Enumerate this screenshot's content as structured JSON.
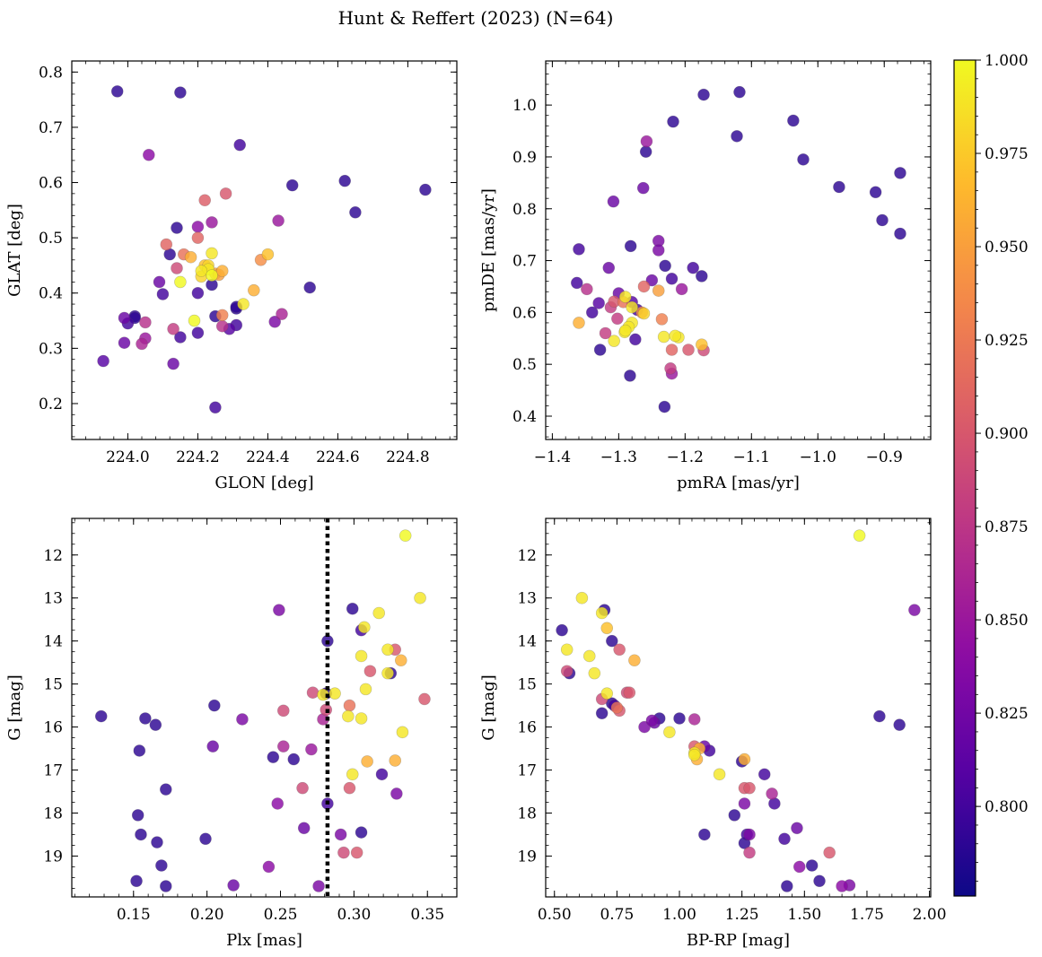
{
  "figure": {
    "title": "Hunt & Reffert (2023) (N=64)",
    "point_cmap": "plasma"
  },
  "colorbar": {
    "range": [
      0.776,
      1.0
    ],
    "ticks": [
      "0.800",
      "0.825",
      "0.850",
      "0.875",
      "0.900",
      "0.925",
      "0.950",
      "0.975",
      "1.000"
    ],
    "tick_values": [
      0.8,
      0.825,
      0.85,
      0.875,
      0.9,
      0.925,
      0.95,
      0.975,
      1.0
    ]
  },
  "chart_data": [
    {
      "type": "scatter",
      "panel": "glon-glat",
      "xlabel": "GLON [deg]",
      "ylabel": "GLAT [deg]",
      "xlim": [
        223.84,
        224.94
      ],
      "ylim": [
        0.135,
        0.82
      ],
      "invert_y": false,
      "xticks": [
        224.0,
        224.2,
        224.4,
        224.6,
        224.8
      ],
      "xtick_labels": [
        "224.0",
        "224.2",
        "224.4",
        "224.6",
        "224.8"
      ],
      "yticks": [
        0.2,
        0.3,
        0.4,
        0.5,
        0.6,
        0.7,
        0.8
      ],
      "ytick_labels": [
        "0.2",
        "0.3",
        "0.4",
        "0.5",
        "0.6",
        "0.7",
        "0.8"
      ],
      "x": [
        223.97,
        224.15,
        224.32,
        224.06,
        224.47,
        224.62,
        224.65,
        224.85,
        224.22,
        224.28,
        224.14,
        224.24,
        224.2,
        224.43,
        224.11,
        224.2,
        224.12,
        224.16,
        224.18,
        224.24,
        224.22,
        224.4,
        224.25,
        224.24,
        224.14,
        224.23,
        224.24,
        224.21,
        224.26,
        224.15,
        224.09,
        224.1,
        224.2,
        224.36,
        224.38,
        224.33,
        224.31,
        224.52,
        223.99,
        224.02,
        224.0,
        224.02,
        224.27,
        224.19,
        224.25,
        224.31,
        224.44,
        224.42,
        224.27,
        224.29,
        224.2,
        224.13,
        224.05,
        223.99,
        224.04,
        224.15,
        224.05,
        223.93,
        224.13,
        224.25,
        224.21,
        224.31,
        224.27,
        224.23
      ],
      "y": [
        0.765,
        0.763,
        0.668,
        0.65,
        0.595,
        0.603,
        0.546,
        0.587,
        0.568,
        0.58,
        0.518,
        0.528,
        0.52,
        0.531,
        0.488,
        0.5,
        0.47,
        0.47,
        0.465,
        0.472,
        0.45,
        0.47,
        0.435,
        0.432,
        0.445,
        0.443,
        0.415,
        0.43,
        0.433,
        0.42,
        0.42,
        0.398,
        0.4,
        0.405,
        0.46,
        0.38,
        0.372,
        0.41,
        0.355,
        0.358,
        0.345,
        0.355,
        0.36,
        0.35,
        0.358,
        0.342,
        0.362,
        0.348,
        0.34,
        0.335,
        0.328,
        0.335,
        0.318,
        0.31,
        0.308,
        0.32,
        0.347,
        0.277,
        0.272,
        0.193,
        0.44,
        0.375,
        0.44,
        0.45
      ],
      "c": [
        0.79,
        0.79,
        0.8,
        0.84,
        0.79,
        0.79,
        0.79,
        0.79,
        0.905,
        0.9,
        0.79,
        0.85,
        0.84,
        0.85,
        0.91,
        0.91,
        0.79,
        0.92,
        0.96,
        0.99,
        0.97,
        0.97,
        0.95,
        1.0,
        0.89,
        0.99,
        0.79,
        0.98,
        0.95,
        1.0,
        0.82,
        0.8,
        0.8,
        0.96,
        0.94,
        0.99,
        0.79,
        0.79,
        0.82,
        0.79,
        0.8,
        0.79,
        0.93,
        1.0,
        0.79,
        0.8,
        0.86,
        0.83,
        0.87,
        0.81,
        0.8,
        0.88,
        0.85,
        0.82,
        0.86,
        0.8,
        0.87,
        0.81,
        0.82,
        0.8,
        0.99,
        0.79,
        0.96,
        0.98
      ]
    },
    {
      "type": "scatter",
      "panel": "pmra-pmde",
      "xlabel": "pmRA [mas/yr]",
      "ylabel": "pmDE [mas/yr]",
      "xlim": [
        -1.41,
        -0.83
      ],
      "ylim": [
        0.355,
        1.085
      ],
      "invert_y": false,
      "xticks": [
        -1.4,
        -1.3,
        -1.2,
        -1.1,
        -1.0,
        -0.9
      ],
      "xtick_labels": [
        "−1.4",
        "−1.3",
        "−1.2",
        "−1.1",
        "−1.0",
        "−0.9"
      ],
      "yticks": [
        0.4,
        0.5,
        0.6,
        0.7,
        0.8,
        0.9,
        1.0
      ],
      "ytick_labels": [
        "0.4",
        "0.5",
        "0.6",
        "0.7",
        "0.8",
        "0.9",
        "1.0"
      ],
      "x": [
        -1.118,
        -1.172,
        -1.037,
        -1.218,
        -1.122,
        -1.022,
        -1.258,
        -1.259,
        -0.876,
        -0.968,
        -0.913,
        -0.903,
        -1.308,
        -0.876,
        -1.263,
        -1.24,
        -1.36,
        -1.282,
        -1.24,
        -1.23,
        -1.315,
        -1.188,
        -1.175,
        -1.24,
        -1.25,
        -1.363,
        -1.348,
        -1.262,
        -1.3,
        -1.22,
        -1.265,
        -1.33,
        -1.29,
        -1.272,
        -1.307,
        -1.28,
        -1.28,
        -1.293,
        -1.36,
        -1.28,
        -1.205,
        -1.235,
        -1.34,
        -1.302,
        -1.312,
        -1.285,
        -1.21,
        -1.275,
        -1.232,
        -1.291,
        -1.307,
        -1.22,
        -1.195,
        -1.175,
        -1.222,
        -1.328,
        -1.172,
        -1.22,
        -1.283,
        -1.215,
        -1.231,
        -1.32,
        -1.29,
        -1.262
      ],
      "y": [
        1.025,
        1.02,
        0.97,
        0.968,
        0.94,
        0.895,
        0.93,
        0.91,
        0.869,
        0.842,
        0.832,
        0.778,
        0.814,
        0.752,
        0.84,
        0.738,
        0.722,
        0.728,
        0.72,
        0.69,
        0.686,
        0.686,
        0.67,
        0.642,
        0.662,
        0.657,
        0.645,
        0.65,
        0.637,
        0.665,
        0.6,
        0.618,
        0.63,
        0.605,
        0.621,
        0.61,
        0.62,
        0.62,
        0.58,
        0.58,
        0.645,
        0.587,
        0.6,
        0.588,
        0.61,
        0.572,
        0.552,
        0.548,
        0.553,
        0.562,
        0.545,
        0.528,
        0.528,
        0.538,
        0.492,
        0.528,
        0.527,
        0.482,
        0.478,
        0.555,
        0.418,
        0.56,
        0.565,
        0.598
      ],
      "c": [
        0.79,
        0.79,
        0.79,
        0.79,
        0.79,
        0.79,
        0.85,
        0.79,
        0.79,
        0.79,
        0.79,
        0.79,
        0.82,
        0.79,
        0.82,
        0.83,
        0.8,
        0.79,
        0.83,
        0.79,
        0.82,
        0.8,
        0.79,
        0.95,
        0.82,
        0.8,
        0.87,
        0.91,
        0.82,
        0.8,
        0.94,
        0.81,
        0.99,
        0.8,
        0.9,
        0.99,
        0.81,
        0.92,
        0.96,
        0.99,
        0.85,
        0.93,
        0.8,
        0.88,
        0.88,
        0.99,
        0.99,
        0.8,
        0.99,
        0.99,
        0.99,
        0.91,
        0.9,
        0.97,
        0.88,
        0.79,
        0.89,
        0.85,
        0.79,
        0.99,
        0.79,
        0.88,
        0.99,
        0.98
      ]
    },
    {
      "type": "scatter",
      "panel": "plx-gmag",
      "xlabel": "Plx [mas]",
      "ylabel": "G [mag]",
      "xlim": [
        0.108,
        0.37
      ],
      "ylim": [
        11.15,
        19.95
      ],
      "invert_y": true,
      "xticks": [
        0.15,
        0.2,
        0.25,
        0.3,
        0.35
      ],
      "xtick_labels": [
        "0.15",
        "0.20",
        "0.25",
        "0.30",
        "0.35"
      ],
      "yticks": [
        12,
        13,
        14,
        15,
        16,
        17,
        18,
        19
      ],
      "ytick_labels": [
        "12",
        "13",
        "14",
        "15",
        "16",
        "17",
        "18",
        "19"
      ],
      "reference_line": {
        "x": 0.282,
        "style": "dotted"
      },
      "x": [
        0.335,
        0.345,
        0.249,
        0.299,
        0.317,
        0.305,
        0.282,
        0.307,
        0.323,
        0.325,
        0.328,
        0.311,
        0.332,
        0.305,
        0.323,
        0.308,
        0.281,
        0.272,
        0.279,
        0.287,
        0.297,
        0.296,
        0.205,
        0.348,
        0.128,
        0.158,
        0.165,
        0.252,
        0.224,
        0.281,
        0.279,
        0.305,
        0.154,
        0.204,
        0.252,
        0.271,
        0.333,
        0.245,
        0.259,
        0.309,
        0.328,
        0.319,
        0.299,
        0.172,
        0.265,
        0.297,
        0.329,
        0.248,
        0.282,
        0.153,
        0.266,
        0.155,
        0.291,
        0.305,
        0.166,
        0.199,
        0.293,
        0.302,
        0.169,
        0.242,
        0.152,
        0.172,
        0.218,
        0.276
      ],
      "y": [
        11.55,
        13.0,
        13.28,
        13.25,
        13.35,
        13.75,
        14.0,
        13.68,
        14.2,
        14.75,
        14.2,
        14.7,
        14.45,
        14.35,
        14.75,
        15.12,
        15.22,
        15.2,
        15.25,
        15.22,
        15.5,
        15.75,
        15.5,
        15.35,
        15.75,
        15.8,
        15.95,
        15.62,
        15.82,
        15.6,
        15.82,
        15.8,
        16.55,
        16.45,
        16.45,
        16.52,
        16.12,
        16.7,
        16.75,
        16.8,
        16.78,
        17.1,
        17.1,
        17.45,
        17.42,
        17.42,
        17.55,
        17.78,
        17.78,
        18.05,
        18.35,
        18.5,
        18.5,
        18.45,
        18.68,
        18.6,
        18.92,
        18.92,
        19.22,
        19.25,
        19.58,
        19.7,
        19.68,
        19.7
      ],
      "c": [
        1.0,
        0.99,
        0.83,
        0.79,
        0.99,
        0.8,
        0.79,
        0.99,
        0.99,
        0.79,
        0.9,
        0.9,
        0.96,
        0.99,
        0.99,
        0.99,
        0.79,
        0.89,
        0.99,
        0.99,
        0.92,
        0.99,
        0.79,
        0.9,
        0.79,
        0.79,
        0.79,
        0.89,
        0.83,
        0.89,
        0.86,
        0.99,
        0.79,
        0.82,
        0.86,
        0.85,
        0.99,
        0.79,
        0.79,
        0.96,
        0.96,
        0.8,
        0.99,
        0.79,
        0.89,
        0.9,
        0.83,
        0.84,
        0.8,
        0.79,
        0.82,
        0.79,
        0.83,
        0.79,
        0.79,
        0.79,
        0.89,
        0.9,
        0.79,
        0.84,
        0.79,
        0.79,
        0.82,
        0.83
      ]
    },
    {
      "type": "scatter",
      "panel": "bprp-gmag",
      "xlabel": "BP-RP [mag]",
      "ylabel": "G [mag]",
      "xlim": [
        0.465,
        2.005
      ],
      "ylim": [
        11.15,
        19.95
      ],
      "invert_y": true,
      "xticks": [
        0.5,
        0.75,
        1.0,
        1.25,
        1.5,
        1.75,
        2.0
      ],
      "xtick_labels": [
        "0.50",
        "0.75",
        "1.00",
        "1.25",
        "1.50",
        "1.75",
        "2.00"
      ],
      "yticks": [
        12,
        13,
        14,
        15,
        16,
        17,
        18,
        19
      ],
      "ytick_labels": [
        "12",
        "13",
        "14",
        "15",
        "16",
        "17",
        "18",
        "19"
      ],
      "x": [
        1.72,
        0.61,
        0.7,
        1.94,
        0.69,
        0.53,
        0.71,
        0.73,
        0.55,
        0.64,
        0.76,
        0.82,
        0.66,
        0.55,
        0.56,
        0.79,
        0.71,
        0.69,
        0.74,
        0.73,
        0.75,
        0.76,
        0.8,
        0.69,
        1.8,
        1.88,
        0.92,
        1.0,
        1.06,
        0.86,
        0.9,
        1.12,
        0.96,
        1.06,
        1.08,
        1.1,
        1.26,
        1.06,
        1.07,
        1.25,
        1.16,
        1.34,
        1.26,
        1.28,
        1.37,
        1.26,
        1.38,
        1.22,
        1.27,
        1.28,
        1.42,
        1.26,
        1.47,
        1.1,
        1.28,
        1.6,
        1.53,
        1.48,
        1.56,
        1.68,
        1.65,
        1.43,
        0.89,
        1.06
      ],
      "y": [
        11.55,
        13.0,
        13.28,
        13.28,
        13.35,
        13.75,
        13.7,
        14.0,
        14.2,
        14.35,
        14.2,
        14.45,
        14.75,
        14.7,
        14.75,
        15.2,
        15.22,
        15.35,
        15.5,
        15.45,
        15.55,
        15.62,
        15.2,
        15.68,
        15.75,
        15.95,
        15.8,
        15.8,
        15.82,
        16.0,
        15.9,
        16.55,
        16.12,
        16.45,
        16.5,
        16.45,
        16.75,
        16.6,
        16.75,
        16.8,
        17.1,
        17.1,
        17.42,
        17.42,
        17.55,
        17.78,
        17.78,
        18.05,
        18.5,
        18.5,
        18.6,
        18.7,
        18.35,
        18.5,
        18.92,
        18.92,
        19.22,
        19.25,
        19.58,
        19.68,
        19.7,
        19.7,
        15.85,
        16.65
      ],
      "c": [
        1.0,
        0.99,
        0.79,
        0.83,
        0.99,
        0.79,
        0.97,
        0.79,
        0.99,
        0.99,
        0.9,
        0.96,
        0.99,
        0.89,
        0.79,
        0.89,
        0.99,
        0.89,
        0.8,
        0.79,
        0.92,
        0.9,
        0.9,
        0.79,
        0.79,
        0.79,
        0.79,
        0.79,
        0.86,
        0.83,
        0.82,
        0.8,
        0.99,
        0.9,
        0.96,
        0.82,
        0.96,
        0.99,
        0.96,
        0.79,
        0.99,
        0.8,
        0.9,
        0.9,
        0.86,
        0.83,
        0.8,
        0.79,
        0.8,
        0.83,
        0.8,
        0.79,
        0.82,
        0.79,
        0.88,
        0.9,
        0.79,
        0.84,
        0.79,
        0.83,
        0.84,
        0.79,
        0.83,
        0.99
      ]
    }
  ]
}
